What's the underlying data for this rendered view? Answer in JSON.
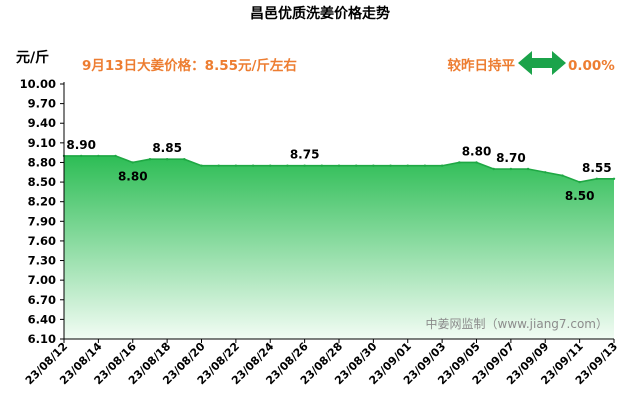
{
  "chart_data": {
    "type": "area",
    "title": "昌邑优质洗姜价格走势",
    "ylabel": "元/斤",
    "ylim": [
      6.1,
      10.0
    ],
    "yticks": [
      "10.00",
      "9.70",
      "9.40",
      "9.10",
      "8.80",
      "8.50",
      "8.20",
      "7.90",
      "7.60",
      "7.30",
      "7.00",
      "6.70",
      "6.40",
      "6.10"
    ],
    "x_tick_labels": [
      "23/08/12",
      "23/08/14",
      "23/08/16",
      "23/08/18",
      "23/08/20",
      "23/08/22",
      "23/08/24",
      "23/08/26",
      "23/08/28",
      "23/08/30",
      "23/09/01",
      "23/09/03",
      "23/09/05",
      "23/09/07",
      "23/09/09",
      "23/09/11",
      "23/09/13"
    ],
    "x": [
      "23/08/12",
      "23/08/13",
      "23/08/14",
      "23/08/15",
      "23/08/16",
      "23/08/17",
      "23/08/18",
      "23/08/19",
      "23/08/20",
      "23/08/21",
      "23/08/22",
      "23/08/23",
      "23/08/24",
      "23/08/25",
      "23/08/26",
      "23/08/27",
      "23/08/28",
      "23/08/29",
      "23/08/30",
      "23/08/31",
      "23/09/01",
      "23/09/02",
      "23/09/03",
      "23/09/04",
      "23/09/05",
      "23/09/06",
      "23/09/07",
      "23/09/08",
      "23/09/09",
      "23/09/10",
      "23/09/11",
      "23/09/12",
      "23/09/13"
    ],
    "values": [
      8.9,
      8.9,
      8.9,
      8.9,
      8.8,
      8.85,
      8.85,
      8.85,
      8.75,
      8.75,
      8.75,
      8.75,
      8.75,
      8.75,
      8.75,
      8.75,
      8.75,
      8.75,
      8.75,
      8.75,
      8.75,
      8.75,
      8.75,
      8.8,
      8.8,
      8.7,
      8.7,
      8.7,
      8.65,
      8.6,
      8.5,
      8.55,
      8.55
    ],
    "data_labels": [
      {
        "x": "23/08/13",
        "text": "8.90",
        "pos": "above"
      },
      {
        "x": "23/08/16",
        "text": "8.80",
        "pos": "below"
      },
      {
        "x": "23/08/18",
        "text": "8.85",
        "pos": "above"
      },
      {
        "x": "23/08/26",
        "text": "8.75",
        "pos": "above"
      },
      {
        "x": "23/09/05",
        "text": "8.80",
        "pos": "above"
      },
      {
        "x": "23/09/07",
        "text": "8.70",
        "pos": "above"
      },
      {
        "x": "23/09/11",
        "text": "8.50",
        "pos": "below"
      },
      {
        "x": "23/09/12",
        "text": "8.55",
        "pos": "above"
      }
    ],
    "grid": false,
    "fill_color_top": "#2DBD55",
    "fill_color_bottom": "#F2FCF4",
    "line_color": "#1FA844"
  },
  "annotations": {
    "price_note": "9月13日大姜价格：8.55元/斤左右",
    "change_label": "较昨日持平",
    "change_value": "0.00%",
    "arrow_color": "#1BA34A",
    "source": "中姜网监制（www.jiang7.com）"
  }
}
